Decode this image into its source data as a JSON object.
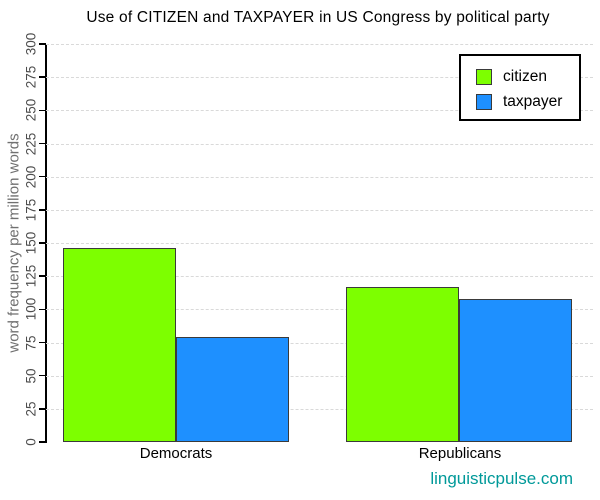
{
  "title": "Use of CITIZEN and TAXPAYER in US Congress by political party",
  "chart_data": {
    "type": "bar",
    "title": "Use of CITIZEN and TAXPAYER in US Congress by political party",
    "categories": [
      "Democrats",
      "Republicans"
    ],
    "series": [
      {
        "name": "citizen",
        "color": "#7DFF00",
        "values": [
          146,
          117
        ]
      },
      {
        "name": "taxpayer",
        "color": "#1E90FF",
        "values": [
          79,
          108
        ]
      }
    ],
    "xlabel": "",
    "ylabel": "word frequency per million words",
    "ylim": [
      0,
      300
    ],
    "ytick_step": 25,
    "grid": "horizontal-dashed",
    "legend_position": "top-right"
  },
  "footer": {
    "watermark": "linguisticpulse.com"
  },
  "colors": {
    "grid": "#D9D9D9",
    "axis": "#000000",
    "bar_border": "#3A3A3A",
    "tick_label": "#4D4D4D",
    "axis_label": "#707070",
    "watermark": "#009999"
  }
}
